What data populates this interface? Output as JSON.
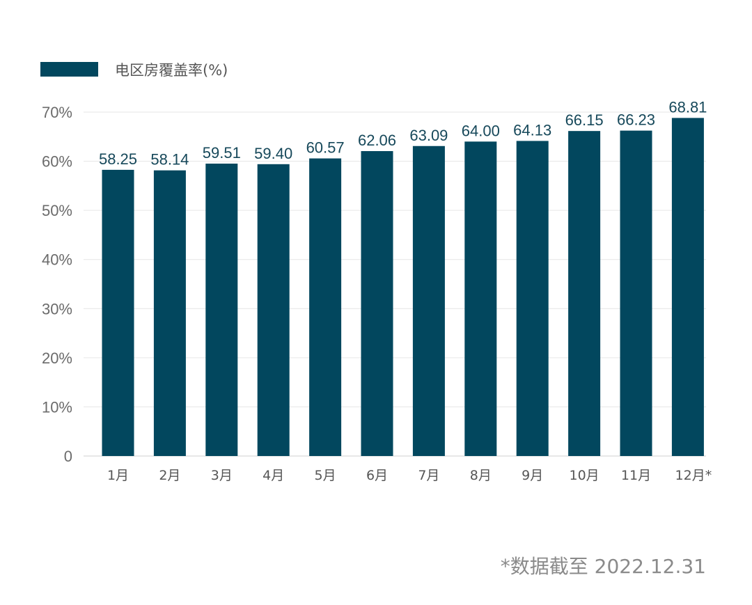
{
  "chart_data": {
    "type": "bar",
    "title": "",
    "xlabel": "",
    "ylabel": "",
    "categories": [
      "1月",
      "2月",
      "3月",
      "4月",
      "5月",
      "6月",
      "7月",
      "8月",
      "9月",
      "10月",
      "11月",
      "12月*"
    ],
    "series": [
      {
        "name": "电区房覆盖率(%)",
        "values": [
          58.25,
          58.14,
          59.51,
          59.4,
          60.57,
          62.06,
          63.09,
          64.0,
          64.13,
          66.15,
          66.23,
          68.81
        ],
        "labels": [
          "58.25",
          "58.14",
          "59.51",
          "59.40",
          "60.57",
          "62.06",
          "63.09",
          "64.00",
          "64.13",
          "66.15",
          "66.23",
          "68.81"
        ]
      }
    ],
    "ylim": [
      0,
      70
    ],
    "yticks": [
      0,
      10,
      20,
      30,
      40,
      50,
      60,
      70
    ],
    "ytick_labels": [
      "0",
      "10%",
      "20%",
      "30%",
      "40%",
      "50%",
      "60%",
      "70%"
    ],
    "grid": true,
    "legend_position": "top-left",
    "bar_color": "#02475e",
    "footnote": "*数据截至 2022.12.31"
  }
}
